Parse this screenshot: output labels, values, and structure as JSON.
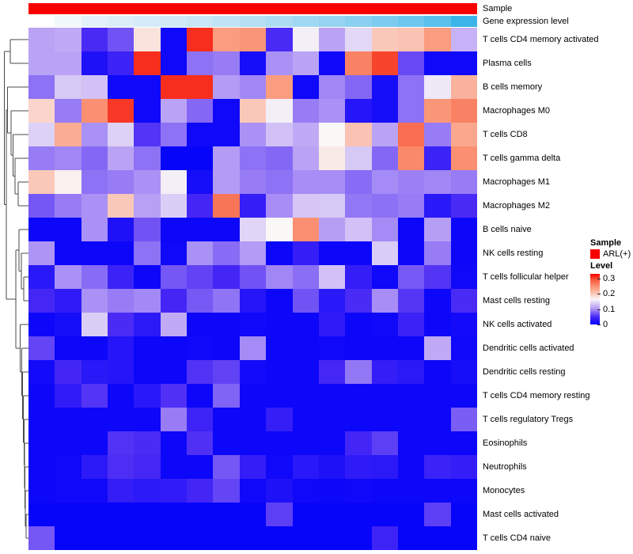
{
  "chart_data": {
    "type": "heatmap",
    "n_columns": 17,
    "rows": [
      "T cells CD4 memory activated",
      "Plasma cells",
      "B cells memory",
      "Macrophages M0",
      "T cells CD8",
      "T cells gamma delta",
      "Macrophages M1",
      "Macrophages M2",
      "B cells naive",
      "NK cells resting",
      "T cells follicular helper",
      "Mast cells resting",
      "NK cells activated",
      "Dendritic cells activated",
      "Dendritic cells resting",
      "T cells CD4 memory resting",
      "T cells regulatory  Tregs",
      "Eosinophils",
      "Neutrophils",
      "Monocytes",
      "Mast cells activated",
      "T cells CD4 naive"
    ],
    "values": [
      [
        0.11,
        0.115,
        0.05,
        0.07,
        0.18,
        0.01,
        0.31,
        0.24,
        0.245,
        0.05,
        0.16,
        0.11,
        0.145,
        0.2,
        0.205,
        0.24,
        0.12
      ],
      [
        0.11,
        0.11,
        0.02,
        0.04,
        0.31,
        0.01,
        0.085,
        0.09,
        0.015,
        0.1,
        0.11,
        0.01,
        0.26,
        0.3,
        0.065,
        0.01,
        0.01
      ],
      [
        0.085,
        0.135,
        0.13,
        0.01,
        0.01,
        0.31,
        0.31,
        0.105,
        0.095,
        0.24,
        0.01,
        0.095,
        0.08,
        0.015,
        0.085,
        0.155,
        0.22
      ],
      [
        0.19,
        0.09,
        0.25,
        0.305,
        0.01,
        0.11,
        0.08,
        0.01,
        0.2,
        0.16,
        0.09,
        0.1,
        0.025,
        0.015,
        0.085,
        0.245,
        0.26
      ],
      [
        0.14,
        0.225,
        0.1,
        0.14,
        0.055,
        0.085,
        0.01,
        0.01,
        0.1,
        0.13,
        0.115,
        0.165,
        0.205,
        0.11,
        0.275,
        0.09,
        0.23
      ],
      [
        0.09,
        0.095,
        0.08,
        0.11,
        0.085,
        0.005,
        0.005,
        0.105,
        0.085,
        0.08,
        0.11,
        0.175,
        0.135,
        0.08,
        0.255,
        0.04,
        0.25
      ],
      [
        0.2,
        0.17,
        0.085,
        0.09,
        0.1,
        0.16,
        0.015,
        0.105,
        0.09,
        0.085,
        0.098,
        0.098,
        0.082,
        0.097,
        0.092,
        0.095,
        0.09
      ],
      [
        0.072,
        0.09,
        0.1,
        0.2,
        0.108,
        0.138,
        0.045,
        0.27,
        0.035,
        0.098,
        0.133,
        0.135,
        0.088,
        0.084,
        0.09,
        0.028,
        0.05
      ],
      [
        0.008,
        0.008,
        0.1,
        0.02,
        0.07,
        0.008,
        0.008,
        0.008,
        0.143,
        0.165,
        0.25,
        0.107,
        0.13,
        0.097,
        0.008,
        0.107,
        0.008
      ],
      [
        0.102,
        0.008,
        0.008,
        0.008,
        0.085,
        0.01,
        0.1,
        0.082,
        0.105,
        0.008,
        0.035,
        0.008,
        0.008,
        0.137,
        0.008,
        0.09,
        0.008
      ],
      [
        0.028,
        0.1,
        0.082,
        0.04,
        0.008,
        0.072,
        0.062,
        0.045,
        0.07,
        0.095,
        0.083,
        0.13,
        0.035,
        0.01,
        0.073,
        0.055,
        0.01
      ],
      [
        0.046,
        0.032,
        0.1,
        0.09,
        0.096,
        0.045,
        0.073,
        0.086,
        0.025,
        0.008,
        0.07,
        0.028,
        0.05,
        0.098,
        0.056,
        0.008,
        0.05
      ],
      [
        0.008,
        0.015,
        0.138,
        0.05,
        0.03,
        0.115,
        0.008,
        0.008,
        0.01,
        0.008,
        0.008,
        0.032,
        0.008,
        0.01,
        0.04,
        0.008,
        0.012
      ],
      [
        0.063,
        0.008,
        0.008,
        0.025,
        0.008,
        0.008,
        0.01,
        0.008,
        0.097,
        0.008,
        0.008,
        0.01,
        0.008,
        0.008,
        0.008,
        0.115,
        0.01
      ],
      [
        0.012,
        0.045,
        0.028,
        0.025,
        0.008,
        0.008,
        0.054,
        0.062,
        0.012,
        0.008,
        0.008,
        0.046,
        0.088,
        0.035,
        0.03,
        0.008,
        0.015
      ],
      [
        0.008,
        0.033,
        0.055,
        0.008,
        0.028,
        0.053,
        0.008,
        0.078,
        0.008,
        0.008,
        0.008,
        0.008,
        0.008,
        0.008,
        0.008,
        0.008,
        0.008
      ],
      [
        0.008,
        0.008,
        0.008,
        0.008,
        0.008,
        0.09,
        0.042,
        0.008,
        0.008,
        0.036,
        0.008,
        0.008,
        0.008,
        0.008,
        0.008,
        0.008,
        0.075
      ],
      [
        0.008,
        0.008,
        0.008,
        0.054,
        0.05,
        0.008,
        0.053,
        0.008,
        0.008,
        0.008,
        0.008,
        0.008,
        0.045,
        0.06,
        0.008,
        0.008,
        0.008
      ],
      [
        0.008,
        0.01,
        0.03,
        0.052,
        0.046,
        0.008,
        0.008,
        0.072,
        0.035,
        0.01,
        0.028,
        0.02,
        0.032,
        0.03,
        0.008,
        0.04,
        0.035
      ],
      [
        0.008,
        0.01,
        0.01,
        0.035,
        0.03,
        0.033,
        0.045,
        0.063,
        0.01,
        0.02,
        0.01,
        0.008,
        0.01,
        0.008,
        0.008,
        0.008,
        0.008
      ],
      [
        0.005,
        0.005,
        0.005,
        0.005,
        0.005,
        0.005,
        0.005,
        0.005,
        0.005,
        0.06,
        0.005,
        0.005,
        0.005,
        0.005,
        0.005,
        0.06,
        0.005
      ],
      [
        0.072,
        0.005,
        0.005,
        0.005,
        0.005,
        0.005,
        0.005,
        0.005,
        0.005,
        0.005,
        0.005,
        0.005,
        0.005,
        0.042,
        0.005,
        0.005,
        0.005
      ]
    ],
    "color_scale": {
      "min": 0,
      "max": 0.33,
      "anchors": [
        {
          "v": 0.0,
          "rgb": [
            0,
            0,
            250
          ]
        },
        {
          "v": 0.05,
          "rgb": [
            74,
            42,
            245
          ]
        },
        {
          "v": 0.105,
          "rgb": [
            180,
            155,
            245
          ]
        },
        {
          "v": 0.165,
          "rgb": [
            250,
            247,
            247
          ]
        },
        {
          "v": 0.2,
          "rgb": [
            250,
            200,
            185
          ]
        },
        {
          "v": 0.245,
          "rgb": [
            250,
            150,
            120
          ]
        },
        {
          "v": 0.29,
          "rgb": [
            248,
            90,
            60
          ]
        },
        {
          "v": 0.33,
          "rgb": [
            245,
            0,
            0
          ]
        }
      ]
    },
    "column_annotations": {
      "sample": {
        "label": "Sample",
        "color": "#F80000"
      },
      "gene_expression": {
        "label": "Gene expression level",
        "colors": [
          "#FFFFFF",
          "#F2F9FD",
          "#E2F1FA",
          "#DCEEF8",
          "#D5EBF8",
          "#CFE9F7",
          "#C8E6F6",
          "#C0E3F5",
          "#B5DFF3",
          "#ABDCF3",
          "#A0D8F2",
          "#96D4F1",
          "#8AD0F0",
          "#7DCCEF",
          "#6EC7EE",
          "#5BC0EC",
          "#3BB5E9"
        ]
      }
    },
    "dendrogram": {
      "line_color": "#4a4a4a",
      "segments": [
        [
          13,
          50,
          36,
          50
        ],
        [
          13,
          80,
          36,
          80
        ],
        [
          13,
          50,
          13,
          80
        ],
        [
          23,
          230,
          36,
          230
        ],
        [
          23,
          260,
          36,
          260
        ],
        [
          23,
          230,
          23,
          260
        ],
        [
          19,
          200,
          36,
          200
        ],
        [
          19,
          245,
          23,
          245
        ],
        [
          19,
          200,
          19,
          245
        ],
        [
          16.5,
          170,
          36,
          170
        ],
        [
          16.5,
          222.5,
          19,
          222.5
        ],
        [
          16.5,
          170,
          16.5,
          222.5
        ],
        [
          14,
          140,
          36,
          140
        ],
        [
          14,
          196,
          16.5,
          196
        ],
        [
          14,
          140,
          14,
          196
        ],
        [
          9.5,
          110,
          36,
          110
        ],
        [
          9.5,
          168,
          14,
          168
        ],
        [
          9.5,
          110,
          9.5,
          168
        ],
        [
          30,
          350,
          36,
          350
        ],
        [
          30,
          380,
          36,
          380
        ],
        [
          30,
          350,
          30,
          380
        ],
        [
          27,
          320,
          36,
          320
        ],
        [
          27,
          365,
          30,
          365
        ],
        [
          27,
          320,
          27,
          365
        ],
        [
          24,
          290,
          36,
          290
        ],
        [
          24,
          342.5,
          27,
          342.5
        ],
        [
          24,
          290,
          24,
          342.5
        ],
        [
          33,
          650,
          36,
          650
        ],
        [
          33,
          680,
          36,
          680
        ],
        [
          33,
          650,
          33,
          680
        ],
        [
          32,
          620,
          36,
          620
        ],
        [
          32,
          665,
          33,
          665
        ],
        [
          32,
          620,
          32,
          665
        ],
        [
          31.5,
          590,
          36,
          590
        ],
        [
          31.5,
          642.5,
          32,
          642.5
        ],
        [
          31.5,
          590,
          31.5,
          642.5
        ],
        [
          31,
          560,
          36,
          560
        ],
        [
          31,
          616,
          31.5,
          616
        ],
        [
          31,
          560,
          31,
          616
        ],
        [
          30.5,
          530,
          36,
          530
        ],
        [
          30.5,
          588,
          31,
          588
        ],
        [
          30.5,
          530,
          30.5,
          588
        ],
        [
          29.5,
          500,
          36,
          500
        ],
        [
          29.5,
          559,
          30.5,
          559
        ],
        [
          29.5,
          500,
          29.5,
          559
        ],
        [
          28.5,
          470,
          36,
          470
        ],
        [
          28.5,
          529.5,
          29.5,
          529.5
        ],
        [
          28.5,
          470,
          28.5,
          529.5
        ],
        [
          27.5,
          440,
          36,
          440
        ],
        [
          27.5,
          500,
          28.5,
          500
        ],
        [
          27.5,
          440,
          27.5,
          500
        ],
        [
          25.5,
          410,
          36,
          410
        ],
        [
          25.5,
          470,
          27.5,
          470
        ],
        [
          25.5,
          410,
          25.5,
          470
        ],
        [
          20,
          316,
          24,
          316
        ],
        [
          20,
          440,
          25.5,
          440
        ],
        [
          20,
          316,
          20,
          440
        ],
        [
          8,
          139,
          9.5,
          139
        ],
        [
          8,
          378,
          20,
          378
        ],
        [
          8,
          139,
          8,
          378
        ],
        [
          5.5,
          65,
          13,
          65
        ],
        [
          5.5,
          258.5,
          8,
          258.5
        ],
        [
          5.5,
          65,
          5.5,
          258.5
        ]
      ]
    },
    "legend": {
      "sample_title": "Sample",
      "sample_items": [
        {
          "label": "ARL(+)",
          "color": "#F80000"
        }
      ],
      "level_title": "Level",
      "level_ticks": [
        {
          "label": "0.3",
          "value": 0.3
        },
        {
          "label": "0.2",
          "value": 0.2
        },
        {
          "label": "0.1",
          "value": 0.1
        },
        {
          "label": "0",
          "value": 0.0
        }
      ]
    }
  }
}
